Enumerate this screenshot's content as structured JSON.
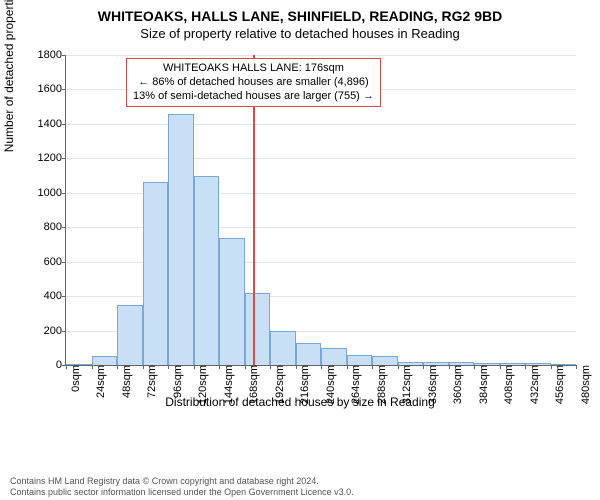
{
  "title": "WHITEOAKS, HALLS LANE, SHINFIELD, READING, RG2 9BD",
  "subtitle": "Size of property relative to detached houses in Reading",
  "ylabel": "Number of detached properties",
  "xlabel": "Distribution of detached houses by size in Reading",
  "chart": {
    "type": "histogram",
    "bar_color": "#c9dff5",
    "bar_border": "#7aa8d8",
    "grid_color": "#e5e5e5",
    "axis_color": "#666666",
    "marker_line_color": "#d94a4a",
    "annotation_border": "#d94a4a",
    "ylim": [
      0,
      1800
    ],
    "ytick_step": 200,
    "yticks": [
      0,
      200,
      400,
      600,
      800,
      1000,
      1200,
      1400,
      1600,
      1800
    ],
    "xticks": [
      "0sqm",
      "24sqm",
      "48sqm",
      "72sqm",
      "96sqm",
      "120sqm",
      "144sqm",
      "168sqm",
      "192sqm",
      "216sqm",
      "240sqm",
      "264sqm",
      "288sqm",
      "312sqm",
      "336sqm",
      "360sqm",
      "384sqm",
      "408sqm",
      "432sqm",
      "456sqm",
      "480sqm"
    ],
    "bin_width": 24,
    "bins": [
      0,
      24,
      48,
      72,
      96,
      120,
      144,
      168,
      192,
      216,
      240,
      264,
      288,
      312,
      336,
      360,
      384,
      408,
      432,
      456,
      480
    ],
    "values": [
      0,
      50,
      350,
      1060,
      1460,
      1100,
      740,
      420,
      200,
      130,
      100,
      60,
      50,
      20,
      20,
      15,
      10,
      10,
      10,
      5
    ],
    "marker_x": 176,
    "annotation": {
      "line1": "WHITEOAKS HALLS LANE: 176sqm",
      "line2": "← 86% of detached houses are smaller (4,896)",
      "line3": "13% of semi-detached houses are larger (755) →"
    }
  },
  "footer": {
    "line1": "Contains HM Land Registry data © Crown copyright and database right 2024.",
    "line2": "Contains public sector information licensed under the Open Government Licence v3.0."
  },
  "fonts": {
    "title_size": 14,
    "subtitle_size": 13,
    "label_size": 12,
    "tick_size": 11,
    "annotation_size": 11,
    "footer_size": 9
  }
}
